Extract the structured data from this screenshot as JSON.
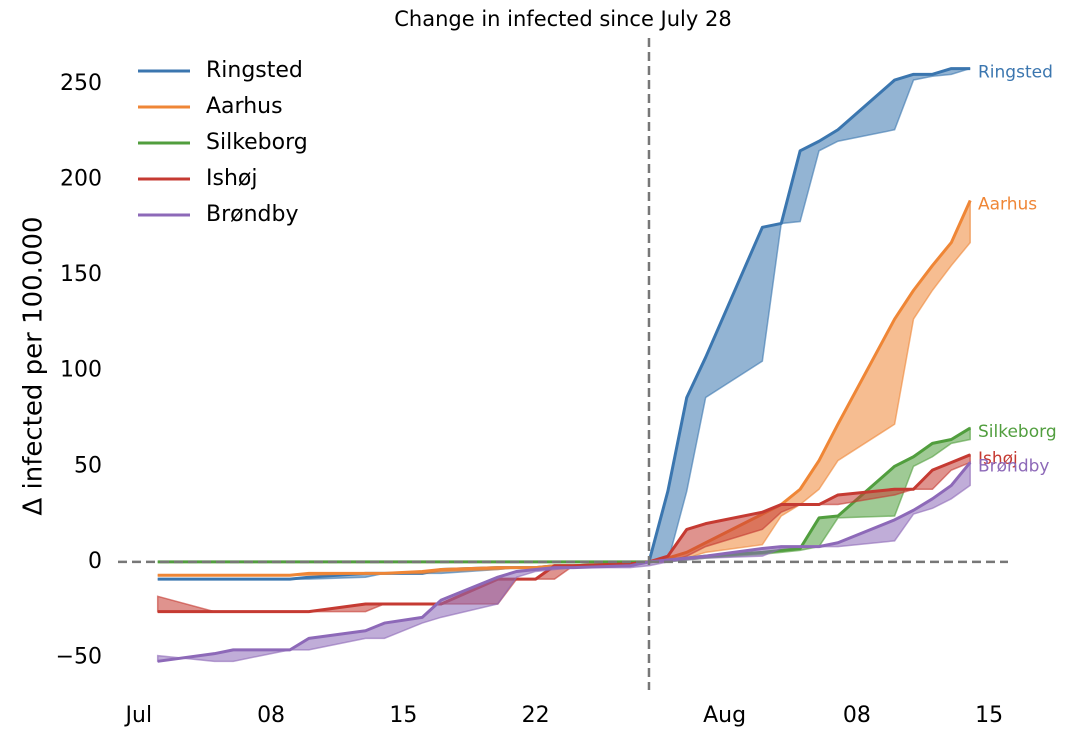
{
  "chart_data": {
    "type": "band-line",
    "title": "Change in infected since July 28",
    "ylabel": "Δ infected per 100.000",
    "x": [
      "07-02",
      "07-05",
      "07-06",
      "07-09",
      "07-10",
      "07-13",
      "07-14",
      "07-16",
      "07-17",
      "07-20",
      "07-21",
      "07-22",
      "07-23",
      "07-24",
      "07-27",
      "07-28",
      "07-29",
      "07-30",
      "07-31",
      "08-03",
      "08-04",
      "08-05",
      "08-06",
      "08-07",
      "08-10",
      "08-11",
      "08-12",
      "08-13",
      "08-14"
    ],
    "xlim": [
      "06-30",
      "08-16"
    ],
    "xticks": [
      {
        "value": "07-01",
        "label": "Jul"
      },
      {
        "value": "07-08",
        "label": "08"
      },
      {
        "value": "07-15",
        "label": "15"
      },
      {
        "value": "07-22",
        "label": "22"
      },
      {
        "value": "08-01",
        "label": "Aug"
      },
      {
        "value": "08-08",
        "label": "08"
      },
      {
        "value": "08-15",
        "label": "15"
      }
    ],
    "ylim": [
      -67,
      274
    ],
    "yticks": [
      {
        "value": -50,
        "label": "−50"
      },
      0,
      50,
      100,
      150,
      200,
      250
    ],
    "grid": false,
    "legend": "upper left",
    "vline": "07-28",
    "hline": 0,
    "series": [
      {
        "name": "Ringsted",
        "color": "#3b76af",
        "values": [
          -9,
          -9,
          -9,
          -9,
          -8,
          -6,
          -6,
          -6,
          -4,
          -3,
          -3,
          -3,
          -2,
          -2,
          -1,
          0,
          37,
          86,
          107,
          175,
          177,
          215,
          220,
          226,
          252,
          255,
          255,
          258,
          258
        ],
        "lower": [
          -9,
          -9,
          -9,
          -9,
          -9,
          -8,
          -6,
          -6,
          -6,
          -4,
          -3,
          -3,
          -3,
          -2,
          -2,
          0,
          0,
          37,
          86,
          105,
          177,
          178,
          215,
          220,
          226,
          252,
          254,
          255,
          258
        ]
      },
      {
        "name": "Aarhus",
        "color": "#ef8636",
        "values": [
          -7,
          -7,
          -7,
          -7,
          -6,
          -6,
          -6,
          -5,
          -4,
          -3,
          -3,
          -3,
          -2,
          -2,
          -1,
          0,
          2,
          5,
          10,
          25,
          30,
          38,
          53,
          72,
          127,
          142,
          155,
          167,
          189
        ],
        "lower": [
          -7,
          -7,
          -7,
          -7,
          -7,
          -6,
          -6,
          -6,
          -5,
          -4,
          -3,
          -3,
          -3,
          -2,
          -2,
          0,
          0,
          2,
          5,
          9,
          24,
          30,
          38,
          53,
          72,
          127,
          142,
          155,
          167
        ]
      },
      {
        "name": "Silkeborg",
        "color": "#519e3e",
        "values": [
          0,
          0,
          0,
          0,
          0,
          0,
          0,
          0,
          0,
          0,
          0,
          0,
          0,
          0,
          0,
          0,
          1,
          2,
          3,
          5,
          6,
          7,
          23,
          24,
          50,
          55,
          62,
          64,
          70
        ],
        "lower": [
          0,
          0,
          0,
          0,
          0,
          0,
          0,
          0,
          0,
          0,
          0,
          0,
          0,
          0,
          0,
          0,
          0,
          1,
          2,
          4,
          5,
          6,
          8,
          23,
          24,
          50,
          55,
          62,
          64
        ]
      },
      {
        "name": "Ishøj",
        "color": "#c53a32",
        "values": [
          -26,
          -26,
          -26,
          -26,
          -26,
          -22,
          -22,
          -22,
          -22,
          -9,
          -9,
          -9,
          -2,
          -2,
          -1,
          0,
          3,
          17,
          20,
          26,
          30,
          30,
          30,
          35,
          38,
          38,
          48,
          52,
          56
        ],
        "lower": [
          -18,
          -26,
          -26,
          -26,
          -26,
          -26,
          -22,
          -22,
          -22,
          -22,
          -9,
          -9,
          -9,
          -2,
          -2,
          0,
          0,
          3,
          8,
          17,
          26,
          30,
          30,
          30,
          35,
          38,
          38,
          48,
          52
        ]
      },
      {
        "name": "Brøndby",
        "color": "#8d69b8",
        "values": [
          -52,
          -48,
          -46,
          -46,
          -40,
          -36,
          -32,
          -29,
          -20,
          -8,
          -5,
          -4,
          -3,
          -3,
          -2,
          0,
          1,
          2,
          3,
          7,
          8,
          8,
          8,
          10,
          22,
          27,
          33,
          40,
          52
        ],
        "lower": [
          -49,
          -52,
          -52,
          -46,
          -46,
          -40,
          -40,
          -32,
          -29,
          -22,
          -8,
          -5,
          -4,
          -3,
          -3,
          -2,
          0,
          1,
          2,
          3,
          7,
          8,
          8,
          8,
          11,
          25,
          28,
          33,
          40
        ]
      }
    ]
  }
}
